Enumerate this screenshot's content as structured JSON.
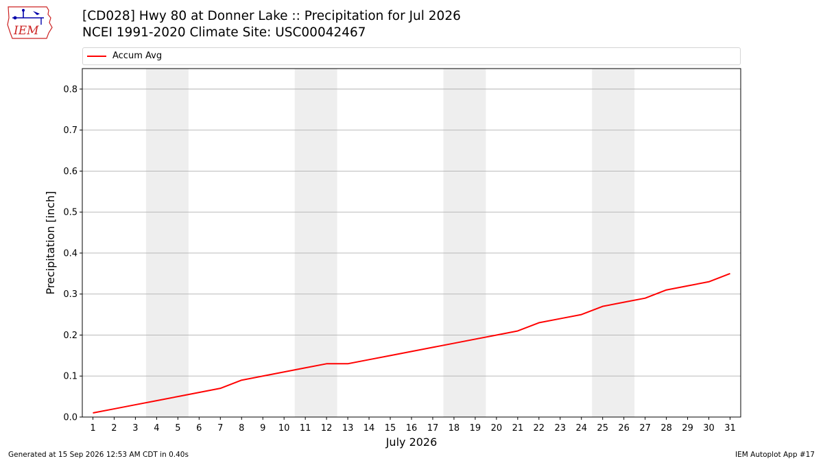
{
  "logo": {
    "text": "IEM",
    "name": "iem-logo"
  },
  "title": {
    "line1": "[CD028] Hwy 80 at Donner Lake :: Precipitation for Jul 2026",
    "line2": "NCEI 1991-2020 Climate Site: USC00042467"
  },
  "legend": {
    "label": "Accum Avg",
    "color": "#ff0000"
  },
  "footer": {
    "left": "Generated at 15 Sep 2026 12:53 AM CDT in 0.40s",
    "right": "IEM Autoplot App #17"
  },
  "chart_data": {
    "type": "line",
    "title": "[CD028] Hwy 80 at Donner Lake :: Precipitation for Jul 2026",
    "subtitle": "NCEI 1991-2020 Climate Site: USC00042467",
    "xlabel": "July 2026",
    "ylabel": "Precipitation [inch]",
    "ylim": [
      0,
      0.85
    ],
    "xlim": [
      0.5,
      31.5
    ],
    "yticks": [
      0.0,
      0.1,
      0.2,
      0.3,
      0.4,
      0.5,
      0.6,
      0.7,
      0.8
    ],
    "ytick_labels": [
      "0.0",
      "0.1",
      "0.2",
      "0.3",
      "0.4",
      "0.5",
      "0.6",
      "0.7",
      "0.8"
    ],
    "xticks": [
      1,
      2,
      3,
      4,
      5,
      6,
      7,
      8,
      9,
      10,
      11,
      12,
      13,
      14,
      15,
      16,
      17,
      18,
      19,
      20,
      21,
      22,
      23,
      24,
      25,
      26,
      27,
      28,
      29,
      30,
      31
    ],
    "weekend_shading": [
      [
        3.5,
        5.5
      ],
      [
        10.5,
        12.5
      ],
      [
        17.5,
        19.5
      ],
      [
        24.5,
        26.5
      ]
    ],
    "grid": "horizontal",
    "legend_position": "top",
    "series": [
      {
        "name": "Accum Avg",
        "color": "#ff0000",
        "x": [
          1,
          2,
          3,
          4,
          5,
          6,
          7,
          8,
          9,
          10,
          11,
          12,
          13,
          14,
          15,
          16,
          17,
          18,
          19,
          20,
          21,
          22,
          23,
          24,
          25,
          26,
          27,
          28,
          29,
          30,
          31
        ],
        "values": [
          0.01,
          0.02,
          0.03,
          0.04,
          0.05,
          0.06,
          0.07,
          0.09,
          0.1,
          0.11,
          0.12,
          0.13,
          0.13,
          0.14,
          0.15,
          0.16,
          0.17,
          0.18,
          0.19,
          0.2,
          0.21,
          0.23,
          0.24,
          0.25,
          0.27,
          0.28,
          0.29,
          0.31,
          0.32,
          0.33,
          0.35
        ]
      }
    ]
  }
}
